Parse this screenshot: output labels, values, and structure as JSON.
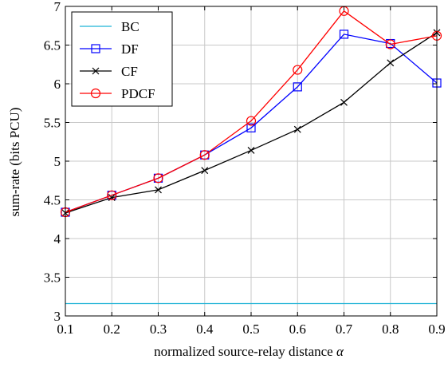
{
  "chart_data": {
    "type": "line",
    "title": "",
    "xlabel": "normalized source-relay distance",
    "xlabel_symbol": "α",
    "ylabel": "sum-rate (bits PCU)",
    "xlim": [
      0.1,
      0.9
    ],
    "ylim": [
      3,
      7
    ],
    "xticks": [
      "0.1",
      "0.2",
      "0.3",
      "0.4",
      "0.5",
      "0.6",
      "0.7",
      "0.8",
      "0.9"
    ],
    "yticks": [
      "3",
      "3.5",
      "4",
      "4.5",
      "5",
      "5.5",
      "6",
      "6.5",
      "7"
    ],
    "grid": true,
    "legend_position": "top-left",
    "x": [
      0.1,
      0.2,
      0.3,
      0.4,
      0.5,
      0.6,
      0.7,
      0.8,
      0.9
    ],
    "series": [
      {
        "name": "BC",
        "color": "#1fb3d6",
        "marker": "none",
        "values": [
          3.16,
          3.16,
          3.16,
          3.16,
          3.16,
          3.16,
          3.16,
          3.16,
          3.16
        ]
      },
      {
        "name": "DF",
        "color": "#0000ff",
        "marker": "square",
        "values": [
          4.34,
          4.56,
          4.78,
          5.08,
          5.43,
          5.96,
          6.64,
          6.52,
          6.01
        ]
      },
      {
        "name": "CF",
        "color": "#000000",
        "marker": "cross",
        "values": [
          4.33,
          4.53,
          4.63,
          4.88,
          5.14,
          5.41,
          5.76,
          6.27,
          6.66
        ]
      },
      {
        "name": "PDCF",
        "color": "#ff0000",
        "marker": "circle",
        "values": [
          4.34,
          4.56,
          4.78,
          5.08,
          5.52,
          6.18,
          6.94,
          6.51,
          6.62
        ]
      }
    ]
  }
}
